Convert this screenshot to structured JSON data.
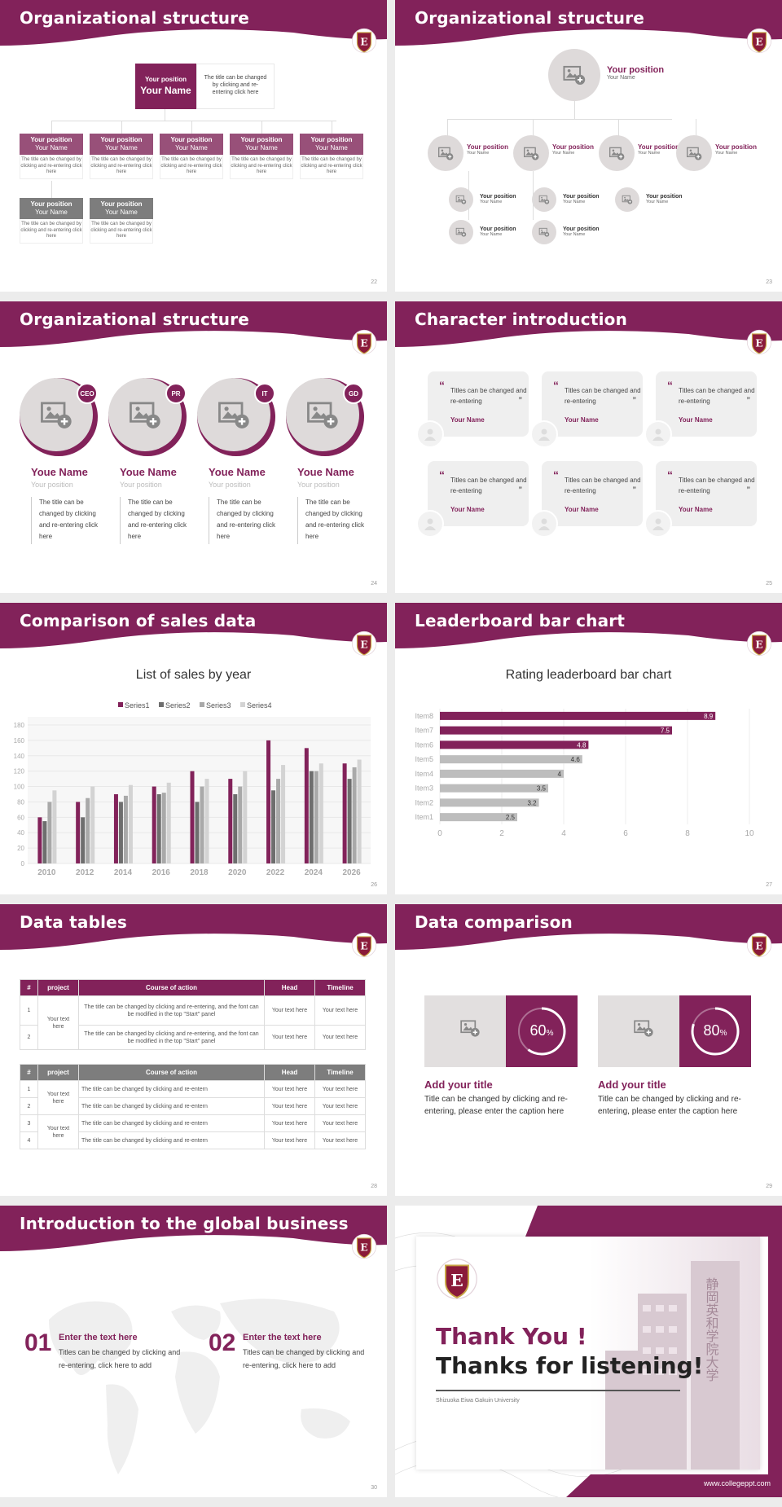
{
  "colors": {
    "brand": "#82225a",
    "gray": "#e4e1e1",
    "text": "#333333"
  },
  "icons": {
    "placeholder": "image-add-icon",
    "logo": "university-crest-icon",
    "avatar": "person-icon"
  },
  "logo_letter": "E",
  "slides": [
    {
      "title": "Organizational structure",
      "page": "22",
      "top": {
        "position": "Your position",
        "name": "Your Name",
        "desc": "The title can be changed by clicking and re-entering click here"
      },
      "cards": [
        {
          "position": "Your position",
          "name": "Your Name",
          "desc": "The title can be changed by clicking and re-entering click here"
        },
        {
          "position": "Your position",
          "name": "Your Name",
          "desc": "The title can be changed by clicking and re-entering click here"
        },
        {
          "position": "Your position",
          "name": "Your Name",
          "desc": "The title can be changed by clicking and re-entering click here"
        },
        {
          "position": "Your position",
          "name": "Your Name",
          "desc": "The title can be changed by clicking and re-entering click here"
        },
        {
          "position": "Your position",
          "name": "Your Name",
          "desc": "The title can be changed by clicking and re-entering click here"
        },
        {
          "position": "Your position",
          "name": "Your Name",
          "desc": "The title can be changed by clicking and re-entering click here"
        },
        {
          "position": "Your position",
          "name": "Your Name",
          "desc": "The title can be changed by clicking and re-entering click here"
        }
      ]
    },
    {
      "title": "Organizational structure",
      "page": "23",
      "top": {
        "position": "Your position",
        "name": "Your Name"
      },
      "second": [
        {
          "position": "Your position",
          "name": "Your Name"
        },
        {
          "position": "Your position",
          "name": "Your Name"
        },
        {
          "position": "Your position",
          "name": "Your Name"
        },
        {
          "position": "Your position",
          "name": "Your Name"
        }
      ],
      "third": [
        {
          "position": "Your position",
          "name": "Your Name"
        },
        {
          "position": "Your position",
          "name": "Your Name"
        },
        {
          "position": "Your position",
          "name": "Your Name"
        },
        {
          "position": "Your position",
          "name": "Your Name"
        },
        {
          "position": "Your position",
          "name": "Your Name"
        },
        {
          "position": "Your position",
          "name": "Your Name"
        }
      ]
    },
    {
      "title": "Organizational structure",
      "page": "24",
      "people": [
        {
          "badge": "CEO",
          "name": "Youe Name",
          "position": "Your position",
          "desc": "The title can be changed by clicking and re-entering click here"
        },
        {
          "badge": "PR",
          "name": "Youe Name",
          "position": "Your position",
          "desc": "The title can be changed by clicking and re-entering click here"
        },
        {
          "badge": "IT",
          "name": "Youe Name",
          "position": "Your position",
          "desc": "The title can be changed by clicking and re-entering click here"
        },
        {
          "badge": "GD",
          "name": "Youe Name",
          "position": "Your position",
          "desc": "The title can be changed by clicking and re-entering click here"
        }
      ]
    },
    {
      "title": "Character introduction",
      "page": "25",
      "cards": [
        {
          "text": "Titles can be changed and re-entering",
          "name": "Your Name"
        },
        {
          "text": "Titles can be changed and re-entering",
          "name": "Your Name"
        },
        {
          "text": "Titles can be changed and re-entering",
          "name": "Your Name"
        },
        {
          "text": "Titles can be changed and re-entering",
          "name": "Your Name"
        },
        {
          "text": "Titles can be changed and re-entering",
          "name": "Your Name"
        },
        {
          "text": "Titles can be changed and re-entering",
          "name": "Your Name"
        }
      ]
    },
    {
      "title": "Comparison of sales data",
      "page": "26"
    },
    {
      "title": "Leaderboard bar chart",
      "page": "27"
    },
    {
      "title": "Data tables",
      "page": "28",
      "table1": {
        "headers": [
          "#",
          "project",
          "Course of action",
          "Head",
          "Timeline"
        ],
        "project": "Your text here",
        "rows": [
          {
            "n": "1",
            "course": "The title can be changed by clicking and re-entering, and the font can be modified in the top \"Start\" panel",
            "head": "Your text here",
            "time": "Your text here"
          },
          {
            "n": "2",
            "course": "The title can be changed by clicking and re-entering, and the font can be modified in the top \"Start\" panel",
            "head": "Your text here",
            "time": "Your text here"
          }
        ]
      },
      "table2": {
        "headers": [
          "#",
          "project",
          "Course of action",
          "Head",
          "Timeline"
        ],
        "projects": [
          "Your text here",
          "Your text here"
        ],
        "rows": [
          {
            "n": "1",
            "course": "The title can be changed by clicking and re-entern",
            "head": "Your text here",
            "time": "Your text here"
          },
          {
            "n": "2",
            "course": "The title can be changed by clicking and re-entern",
            "head": "Your text here",
            "time": "Your text here"
          },
          {
            "n": "3",
            "course": "The title can be changed by clicking and re-entern",
            "head": "Your text here",
            "time": "Your text here"
          },
          {
            "n": "4",
            "course": "The title can be changed by clicking and re-entern",
            "head": "Your text here",
            "time": "Your text here"
          }
        ]
      }
    },
    {
      "title": "Data comparison",
      "page": "29",
      "items": [
        {
          "percent": 60,
          "value": "60",
          "unit": "%",
          "title": "Add your title",
          "desc": "Title can be changed by clicking and re-entering, please enter the caption here"
        },
        {
          "percent": 80,
          "value": "80",
          "unit": "%",
          "title": "Add your title",
          "desc": "Title can be changed by clicking and re-entering, please enter the caption here"
        }
      ]
    },
    {
      "title": "Introduction to the global business",
      "page": "30",
      "items": [
        {
          "num": "01",
          "title": "Enter the text here",
          "desc": "Titles can be changed by clicking and re-entering, click here to add"
        },
        {
          "num": "02",
          "title": "Enter the text here",
          "desc": "Titles can be changed by clicking and re-entering, click here to add"
        }
      ]
    },
    {
      "thanks": "Thank You !",
      "listening": "Thanks for listening!",
      "university": "Shizuoka Eiwa Gakuin University",
      "website": "www.collegeppt.com",
      "building_text": "静岡英和学院大学"
    }
  ],
  "chart_data": [
    {
      "type": "bar",
      "title": "List of sales by year",
      "xlabel": "",
      "ylabel": "",
      "categories": [
        "2010",
        "2012",
        "2014",
        "2016",
        "2018",
        "2020",
        "2022",
        "2024",
        "2026"
      ],
      "ylim": [
        0,
        180
      ],
      "yticks": [
        0,
        20,
        40,
        60,
        80,
        100,
        120,
        140,
        160,
        180
      ],
      "legend": "top",
      "series": [
        {
          "name": "Series1",
          "color": "#82225a",
          "values": [
            60,
            80,
            90,
            100,
            120,
            110,
            160,
            150,
            130
          ]
        },
        {
          "name": "Series2",
          "color": "#6e6e6e",
          "values": [
            55,
            60,
            80,
            90,
            80,
            90,
            95,
            120,
            110
          ]
        },
        {
          "name": "Series3",
          "color": "#a9a9a9",
          "values": [
            80,
            85,
            88,
            92,
            100,
            100,
            110,
            120,
            125
          ]
        },
        {
          "name": "Series4",
          "color": "#d3d3d3",
          "values": [
            95,
            100,
            102,
            105,
            110,
            120,
            128,
            130,
            135
          ]
        }
      ]
    },
    {
      "type": "bar",
      "orientation": "horizontal",
      "title": "Rating leaderboard bar chart",
      "categories": [
        "Item8",
        "Item7",
        "Item6",
        "Item5",
        "Item4",
        "Item3",
        "Item2",
        "Item1"
      ],
      "values": [
        8.9,
        7.5,
        4.8,
        4.6,
        4,
        3.5,
        3.2,
        2.5
      ],
      "highlight": [
        "#82225a",
        "#82225a",
        "#82225a",
        "#bdbdbd",
        "#bdbdbd",
        "#bdbdbd",
        "#bdbdbd",
        "#bdbdbd"
      ],
      "xlim": [
        0,
        10
      ],
      "xticks": [
        0,
        2,
        4,
        6,
        8,
        10
      ]
    }
  ]
}
